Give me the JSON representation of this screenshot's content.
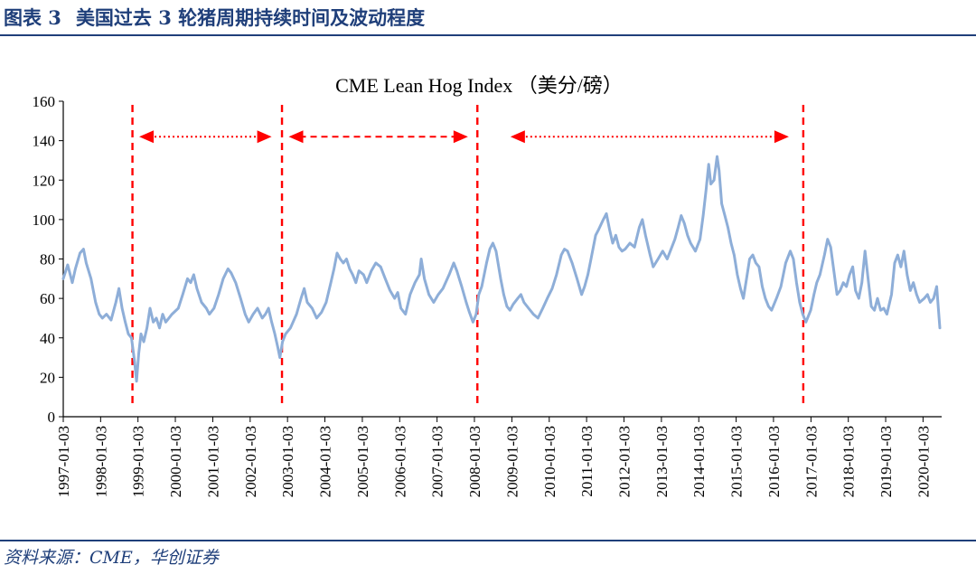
{
  "header": {
    "figure_label": "图表 3",
    "title": "美国过去 3 轮猪周期持续时间及波动程度"
  },
  "source": "资料来源：CME，华创证券",
  "colors": {
    "brand": "#1f3f7a",
    "series": "#8eaed8",
    "marker": "#ff0000",
    "axis": "#000000"
  },
  "chart_data": {
    "type": "line",
    "title": "CME Lean Hog Index （美分/磅）",
    "xlabel": "",
    "ylabel": "",
    "ylim": [
      0,
      160
    ],
    "yticks": [
      0,
      20,
      40,
      60,
      80,
      100,
      120,
      140,
      160
    ],
    "xlim": [
      "1997-01-03",
      "2020-07-03"
    ],
    "xticks": [
      "1997-01-03",
      "1998-01-03",
      "1999-01-03",
      "2000-01-03",
      "2001-01-03",
      "2002-01-03",
      "2003-01-03",
      "2004-01-03",
      "2005-01-03",
      "2006-01-03",
      "2007-01-03",
      "2008-01-03",
      "2009-01-03",
      "2010-01-03",
      "2011-01-03",
      "2012-01-03",
      "2013-01-03",
      "2014-01-03",
      "2015-01-03",
      "2016-01-03",
      "2017-01-03",
      "2018-01-03",
      "2019-01-03",
      "2020-01-03"
    ],
    "grid": false,
    "legend": "none",
    "series": [
      {
        "points": [
          [
            "1997-01-03",
            70
          ],
          [
            "1997-02-15",
            77
          ],
          [
            "1997-04-01",
            68
          ],
          [
            "1997-05-01",
            75
          ],
          [
            "1997-06-15",
            83
          ],
          [
            "1997-07-20",
            85
          ],
          [
            "1997-08-15",
            78
          ],
          [
            "1997-10-01",
            70
          ],
          [
            "1997-11-15",
            58
          ],
          [
            "1997-12-20",
            52
          ],
          [
            "1998-01-20",
            50
          ],
          [
            "1998-03-01",
            52
          ],
          [
            "1998-04-15",
            49
          ],
          [
            "1998-06-01",
            58
          ],
          [
            "1998-07-01",
            65
          ],
          [
            "1998-08-01",
            55
          ],
          [
            "1998-09-01",
            48
          ],
          [
            "1998-10-01",
            42
          ],
          [
            "1998-11-01",
            40
          ],
          [
            "1998-12-01",
            28
          ],
          [
            "1998-12-20",
            18
          ],
          [
            "1999-01-10",
            32
          ],
          [
            "1999-02-01",
            42
          ],
          [
            "1999-03-01",
            38
          ],
          [
            "1999-04-01",
            45
          ],
          [
            "1999-05-01",
            55
          ],
          [
            "1999-06-01",
            48
          ],
          [
            "1999-07-01",
            50
          ],
          [
            "1999-08-01",
            45
          ],
          [
            "1999-09-01",
            52
          ],
          [
            "1999-10-01",
            48
          ],
          [
            "1999-11-01",
            50
          ],
          [
            "1999-12-01",
            52
          ],
          [
            "2000-02-01",
            55
          ],
          [
            "2000-03-15",
            62
          ],
          [
            "2000-05-01",
            70
          ],
          [
            "2000-06-01",
            68
          ],
          [
            "2000-07-01",
            72
          ],
          [
            "2000-08-01",
            65
          ],
          [
            "2000-09-15",
            58
          ],
          [
            "2000-11-01",
            55
          ],
          [
            "2000-12-01",
            52
          ],
          [
            "2001-01-15",
            55
          ],
          [
            "2001-03-01",
            62
          ],
          [
            "2001-04-15",
            70
          ],
          [
            "2001-06-01",
            75
          ],
          [
            "2001-07-01",
            73
          ],
          [
            "2001-08-15",
            68
          ],
          [
            "2001-10-01",
            60
          ],
          [
            "2001-11-15",
            52
          ],
          [
            "2001-12-20",
            48
          ],
          [
            "2002-02-01",
            52
          ],
          [
            "2002-03-15",
            55
          ],
          [
            "2002-05-01",
            50
          ],
          [
            "2002-06-01",
            52
          ],
          [
            "2002-07-01",
            55
          ],
          [
            "2002-08-01",
            48
          ],
          [
            "2002-09-01",
            42
          ],
          [
            "2002-10-01",
            35
          ],
          [
            "2002-10-20",
            30
          ],
          [
            "2002-11-15",
            38
          ],
          [
            "2002-12-15",
            42
          ],
          [
            "2003-02-01",
            45
          ],
          [
            "2003-04-01",
            52
          ],
          [
            "2003-05-15",
            60
          ],
          [
            "2003-06-15",
            65
          ],
          [
            "2003-07-15",
            58
          ],
          [
            "2003-09-01",
            55
          ],
          [
            "2003-10-15",
            50
          ],
          [
            "2003-12-01",
            53
          ],
          [
            "2004-01-15",
            58
          ],
          [
            "2004-03-01",
            68
          ],
          [
            "2004-04-01",
            75
          ],
          [
            "2004-05-01",
            83
          ],
          [
            "2004-06-01",
            80
          ],
          [
            "2004-07-01",
            78
          ],
          [
            "2004-08-01",
            80
          ],
          [
            "2004-09-01",
            75
          ],
          [
            "2004-10-01",
            72
          ],
          [
            "2004-11-01",
            68
          ],
          [
            "2004-12-01",
            74
          ],
          [
            "2005-01-15",
            72
          ],
          [
            "2005-02-15",
            68
          ],
          [
            "2005-04-01",
            74
          ],
          [
            "2005-05-15",
            78
          ],
          [
            "2005-07-01",
            76
          ],
          [
            "2005-08-15",
            70
          ],
          [
            "2005-10-01",
            64
          ],
          [
            "2005-11-15",
            60
          ],
          [
            "2005-12-15",
            63
          ],
          [
            "2006-01-15",
            55
          ],
          [
            "2006-03-01",
            52
          ],
          [
            "2006-04-15",
            62
          ],
          [
            "2006-06-01",
            68
          ],
          [
            "2006-07-15",
            72
          ],
          [
            "2006-08-01",
            80
          ],
          [
            "2006-09-01",
            70
          ],
          [
            "2006-10-15",
            62
          ],
          [
            "2006-12-01",
            58
          ],
          [
            "2007-01-15",
            62
          ],
          [
            "2007-03-01",
            65
          ],
          [
            "2007-05-01",
            72
          ],
          [
            "2007-06-15",
            78
          ],
          [
            "2007-07-15",
            74
          ],
          [
            "2007-09-01",
            66
          ],
          [
            "2007-10-15",
            58
          ],
          [
            "2007-11-15",
            53
          ],
          [
            "2007-12-20",
            48
          ],
          [
            "2008-01-20",
            52
          ],
          [
            "2008-02-15",
            62
          ],
          [
            "2008-03-15",
            66
          ],
          [
            "2008-05-01",
            78
          ],
          [
            "2008-06-01",
            85
          ],
          [
            "2008-07-01",
            88
          ],
          [
            "2008-08-01",
            84
          ],
          [
            "2008-09-15",
            70
          ],
          [
            "2008-10-15",
            62
          ],
          [
            "2008-11-15",
            56
          ],
          [
            "2008-12-15",
            54
          ],
          [
            "2009-01-15",
            57
          ],
          [
            "2009-03-01",
            60
          ],
          [
            "2009-04-01",
            62
          ],
          [
            "2009-05-01",
            58
          ],
          [
            "2009-06-15",
            55
          ],
          [
            "2009-08-01",
            52
          ],
          [
            "2009-09-15",
            50
          ],
          [
            "2009-11-01",
            55
          ],
          [
            "2009-12-15",
            60
          ],
          [
            "2010-02-01",
            65
          ],
          [
            "2010-03-15",
            72
          ],
          [
            "2010-05-01",
            82
          ],
          [
            "2010-06-01",
            85
          ],
          [
            "2010-07-01",
            84
          ],
          [
            "2010-08-15",
            78
          ],
          [
            "2010-10-01",
            70
          ],
          [
            "2010-11-15",
            62
          ],
          [
            "2010-12-15",
            66
          ],
          [
            "2011-01-15",
            72
          ],
          [
            "2011-02-15",
            80
          ],
          [
            "2011-04-01",
            92
          ],
          [
            "2011-05-01",
            95
          ],
          [
            "2011-06-15",
            100
          ],
          [
            "2011-07-15",
            103
          ],
          [
            "2011-08-15",
            95
          ],
          [
            "2011-09-15",
            88
          ],
          [
            "2011-10-15",
            92
          ],
          [
            "2011-11-15",
            86
          ],
          [
            "2011-12-15",
            84
          ],
          [
            "2012-01-15",
            85
          ],
          [
            "2012-03-01",
            88
          ],
          [
            "2012-04-15",
            86
          ],
          [
            "2012-06-01",
            96
          ],
          [
            "2012-07-01",
            100
          ],
          [
            "2012-08-01",
            92
          ],
          [
            "2012-09-15",
            82
          ],
          [
            "2012-10-15",
            76
          ],
          [
            "2012-12-01",
            80
          ],
          [
            "2013-01-15",
            84
          ],
          [
            "2013-03-01",
            80
          ],
          [
            "2013-04-15",
            86
          ],
          [
            "2013-05-15",
            90
          ],
          [
            "2013-06-15",
            96
          ],
          [
            "2013-07-15",
            102
          ],
          [
            "2013-08-15",
            98
          ],
          [
            "2013-09-15",
            92
          ],
          [
            "2013-10-15",
            88
          ],
          [
            "2013-12-01",
            84
          ],
          [
            "2014-01-15",
            90
          ],
          [
            "2014-02-15",
            102
          ],
          [
            "2014-03-15",
            115
          ],
          [
            "2014-04-10",
            128
          ],
          [
            "2014-05-01",
            118
          ],
          [
            "2014-06-01",
            120
          ],
          [
            "2014-07-01",
            132
          ],
          [
            "2014-07-20",
            125
          ],
          [
            "2014-08-15",
            108
          ],
          [
            "2014-09-15",
            102
          ],
          [
            "2014-10-15",
            96
          ],
          [
            "2014-11-15",
            88
          ],
          [
            "2014-12-15",
            82
          ],
          [
            "2015-01-15",
            72
          ],
          [
            "2015-02-15",
            65
          ],
          [
            "2015-03-15",
            60
          ],
          [
            "2015-04-15",
            70
          ],
          [
            "2015-05-15",
            80
          ],
          [
            "2015-06-15",
            82
          ],
          [
            "2015-07-15",
            78
          ],
          [
            "2015-08-15",
            76
          ],
          [
            "2015-09-15",
            66
          ],
          [
            "2015-10-15",
            60
          ],
          [
            "2015-11-15",
            56
          ],
          [
            "2015-12-15",
            54
          ],
          [
            "2016-02-01",
            60
          ],
          [
            "2016-03-15",
            66
          ],
          [
            "2016-05-01",
            78
          ],
          [
            "2016-06-15",
            84
          ],
          [
            "2016-07-15",
            80
          ],
          [
            "2016-08-15",
            68
          ],
          [
            "2016-09-15",
            58
          ],
          [
            "2016-10-15",
            52
          ],
          [
            "2016-11-15",
            48
          ],
          [
            "2017-01-01",
            54
          ],
          [
            "2017-02-01",
            62
          ],
          [
            "2017-03-01",
            68
          ],
          [
            "2017-04-01",
            72
          ],
          [
            "2017-05-15",
            82
          ],
          [
            "2017-06-15",
            90
          ],
          [
            "2017-07-15",
            86
          ],
          [
            "2017-08-15",
            74
          ],
          [
            "2017-09-15",
            62
          ],
          [
            "2017-10-15",
            64
          ],
          [
            "2017-11-15",
            68
          ],
          [
            "2017-12-15",
            66
          ],
          [
            "2018-01-15",
            72
          ],
          [
            "2018-02-15",
            76
          ],
          [
            "2018-03-15",
            64
          ],
          [
            "2018-04-15",
            60
          ],
          [
            "2018-05-15",
            68
          ],
          [
            "2018-06-15",
            84
          ],
          [
            "2018-07-15",
            70
          ],
          [
            "2018-08-15",
            56
          ],
          [
            "2018-09-15",
            54
          ],
          [
            "2018-10-15",
            60
          ],
          [
            "2018-11-15",
            54
          ],
          [
            "2018-12-15",
            55
          ],
          [
            "2019-01-15",
            52
          ],
          [
            "2019-03-01",
            62
          ],
          [
            "2019-04-01",
            78
          ],
          [
            "2019-05-01",
            82
          ],
          [
            "2019-06-01",
            76
          ],
          [
            "2019-07-01",
            84
          ],
          [
            "2019-08-01",
            72
          ],
          [
            "2019-09-01",
            64
          ],
          [
            "2019-10-01",
            68
          ],
          [
            "2019-11-01",
            62
          ],
          [
            "2019-12-01",
            58
          ],
          [
            "2020-01-15",
            60
          ],
          [
            "2020-02-15",
            62
          ],
          [
            "2020-03-15",
            58
          ],
          [
            "2020-04-15",
            60
          ],
          [
            "2020-05-15",
            66
          ],
          [
            "2020-06-15",
            45
          ]
        ]
      }
    ],
    "annotations": {
      "cycle_boundaries": [
        "1998-11-10",
        "2002-11-10",
        "2008-02-01",
        "2016-10-20"
      ],
      "cycle_spans": [
        {
          "from": "1999-01-15",
          "to": "2002-08-01",
          "style": "dotted"
        },
        {
          "from": "2003-01-15",
          "to": "2007-11-01",
          "style": "dashed"
        },
        {
          "from": "2008-12-20",
          "to": "2016-06-01",
          "style": "dotted"
        }
      ]
    }
  }
}
